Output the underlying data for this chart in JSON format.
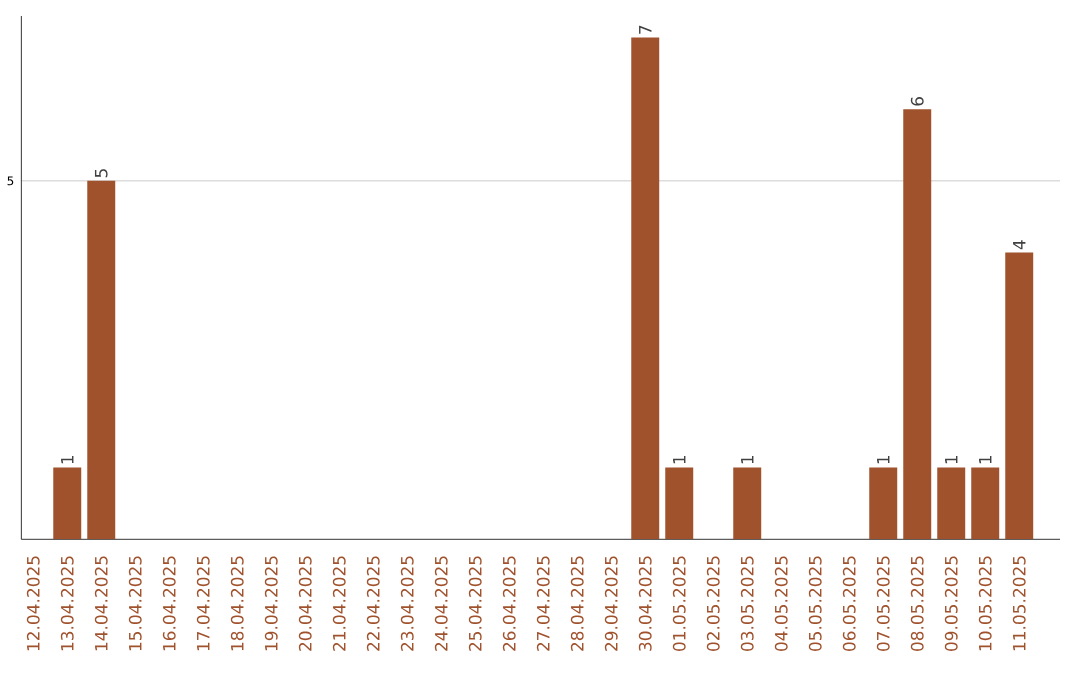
{
  "chart_data": {
    "type": "bar",
    "categories": [
      "12.04.2025",
      "13.04.2025",
      "14.04.2025",
      "15.04.2025",
      "16.04.2025",
      "17.04.2025",
      "18.04.2025",
      "19.04.2025",
      "20.04.2025",
      "21.04.2025",
      "22.04.2025",
      "23.04.2025",
      "24.04.2025",
      "25.04.2025",
      "26.04.2025",
      "27.04.2025",
      "28.04.2025",
      "29.04.2025",
      "30.04.2025",
      "01.05.2025",
      "02.05.2025",
      "03.05.2025",
      "04.05.2025",
      "05.05.2025",
      "06.05.2025",
      "07.05.2025",
      "08.05.2025",
      "09.05.2025",
      "10.05.2025",
      "11.05.2025"
    ],
    "values": [
      0,
      1,
      5,
      0,
      0,
      0,
      0,
      0,
      0,
      0,
      0,
      0,
      0,
      0,
      0,
      0,
      0,
      0,
      7,
      1,
      0,
      1,
      0,
      0,
      0,
      1,
      6,
      1,
      1,
      4
    ],
    "value_labels": [
      null,
      "1",
      "5",
      null,
      null,
      null,
      null,
      null,
      null,
      null,
      null,
      null,
      null,
      null,
      null,
      null,
      null,
      null,
      "7",
      "1",
      null,
      "1",
      null,
      null,
      null,
      "1",
      "6",
      "1",
      "1",
      "4"
    ],
    "color": "#a0522d",
    "ylim": [
      0,
      7.3
    ],
    "yticks": [
      5
    ],
    "grid": "y"
  }
}
